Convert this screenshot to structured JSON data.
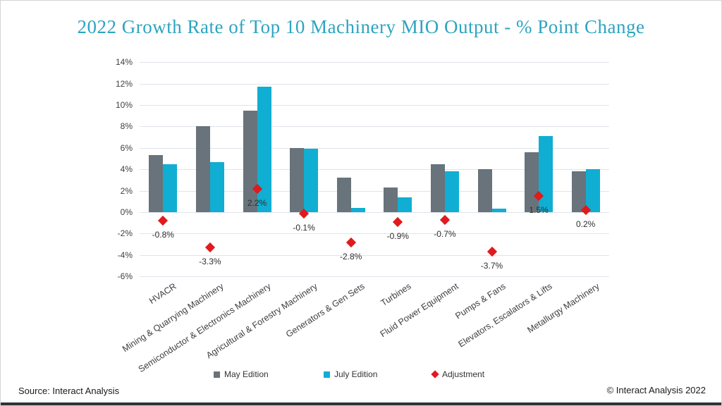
{
  "title": "2022 Growth Rate of Top 10 Machinery MIO Output - % Point Change",
  "footer": {
    "source": "Source: Interact Analysis",
    "copyright": "© Interact Analysis 2022"
  },
  "colors": {
    "title": "#2da4c0",
    "may_bar": "#68737b",
    "july_bar": "#10aed2",
    "adjustment": "#e01a1d",
    "gridline": "#dfe5ec",
    "bottom_bar": "#303338"
  },
  "chart_data": {
    "type": "bar",
    "title": "2022 Growth Rate of Top 10 Machinery MIO Output - % Point Change",
    "categories": [
      "HVACR",
      "Mining & Quarrying Machinery",
      "Semiconductor & Electronics Machinery",
      "Agricultural & Forestry Machinery",
      "Generators & Gen Sets",
      "Turbines",
      "Fluid Power Equipment",
      "Pumps & Fans",
      "Elevators, Escalators & Lifts",
      "Metallurgy Machinery"
    ],
    "series": [
      {
        "name": "May Edition",
        "type": "bar",
        "color": "#68737b",
        "values": [
          5.3,
          8.0,
          9.5,
          6.0,
          3.2,
          2.3,
          4.5,
          4.0,
          5.6,
          3.8
        ]
      },
      {
        "name": "July Edition",
        "type": "bar",
        "color": "#10aed2",
        "values": [
          4.5,
          4.7,
          11.7,
          5.9,
          0.4,
          1.4,
          3.8,
          0.3,
          7.1,
          4.0
        ]
      },
      {
        "name": "Adjustment",
        "type": "scatter",
        "marker": "diamond",
        "color": "#e01a1d",
        "values": [
          -0.8,
          -3.3,
          2.2,
          -0.1,
          -2.8,
          -0.9,
          -0.7,
          -3.7,
          1.5,
          0.2
        ],
        "labels": [
          "-0.8%",
          "-3.3%",
          "2.2%",
          "-0.1%",
          "-2.8%",
          "-0.9%",
          "-0.7%",
          "-3.7%",
          "1.5%",
          "0.2%"
        ]
      }
    ],
    "ylim": [
      -6,
      14
    ],
    "ytick_step": 2,
    "ytick_labels": [
      "14%",
      "12%",
      "10%",
      "8%",
      "6%",
      "4%",
      "2%",
      "0%",
      "-2%",
      "-4%",
      "-6%"
    ],
    "grid": true,
    "legend_position": "bottom"
  }
}
